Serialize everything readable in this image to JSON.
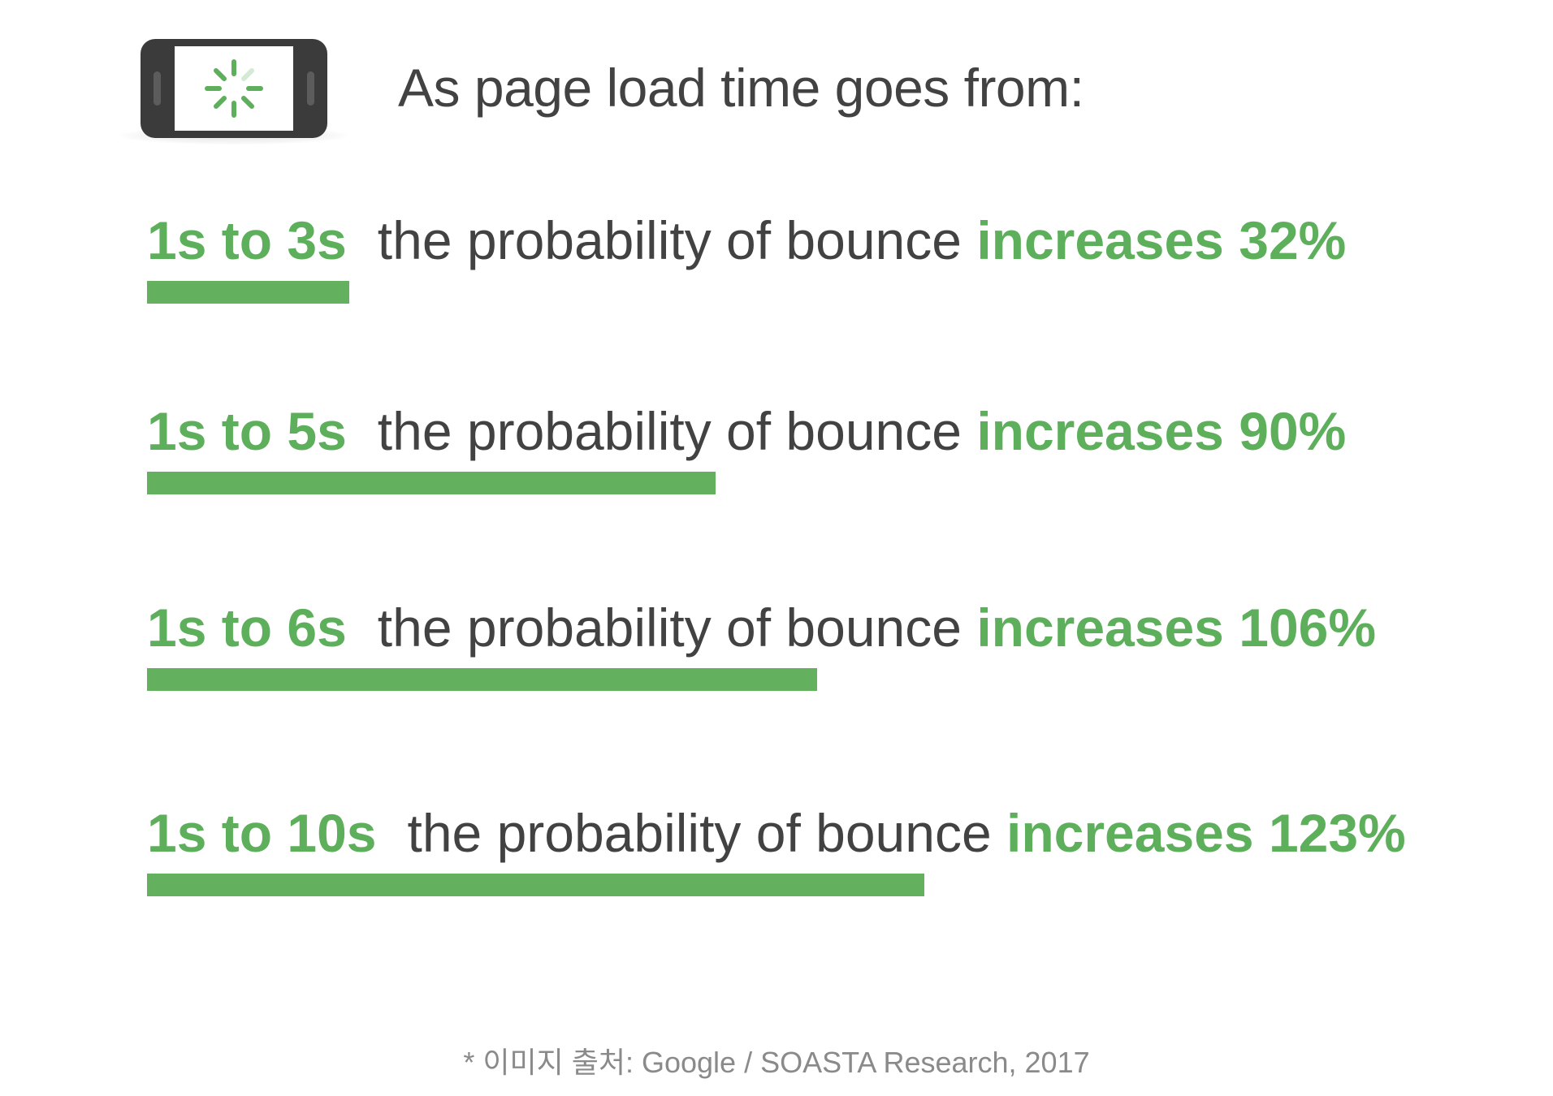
{
  "header": {
    "icon": "phone-loading-spinner-icon",
    "title": "As page load time goes from:"
  },
  "chart_data": {
    "type": "bar",
    "categories": [
      "1s to 3s",
      "1s to 5s",
      "1s to 6s",
      "1s to 10s"
    ],
    "values": [
      32,
      90,
      106,
      123
    ],
    "unit": "%",
    "phrase": "the probability of bounce",
    "increase_word": "increases",
    "value_labels": [
      "32%",
      "90%",
      "106%",
      "123%"
    ],
    "max_value": 123,
    "grid": false,
    "legend": "none"
  },
  "footer": {
    "source": "* 이미지 출처: Google / SOASTA Research, 2017"
  },
  "colors": {
    "accent_green": "#5daf5b",
    "bar_green": "#63b05e",
    "text_dark": "#424242",
    "text_muted": "#8a8a8a",
    "phone_body": "#3b3b3b"
  }
}
